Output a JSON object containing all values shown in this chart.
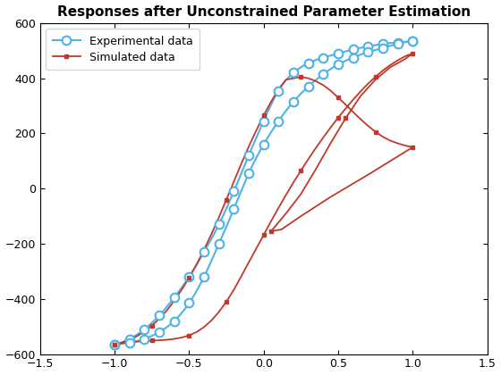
{
  "title": "Responses after Unconstrained Parameter Estimation",
  "xlim": [
    -1.5,
    1.5
  ],
  "ylim": [
    -600,
    600
  ],
  "xticks": [
    -1.5,
    -1.0,
    -0.5,
    0.0,
    0.5,
    1.0,
    1.5
  ],
  "yticks": [
    -600,
    -400,
    -200,
    0,
    200,
    400,
    600
  ],
  "exp_color": "#4db3e6",
  "sim_color": "#c0392b",
  "background": "#ffffff",
  "title_fontsize": 11,
  "legend_fontsize": 9,
  "exp_up_x": [
    -1.0,
    -0.9,
    -0.8,
    -0.7,
    -0.6,
    -0.5,
    -0.4,
    -0.3,
    -0.2,
    -0.1,
    0.0,
    0.1,
    0.2,
    0.3,
    0.4,
    0.5,
    0.6,
    0.7,
    0.8,
    0.9,
    1.0
  ],
  "exp_up_y": [
    -565,
    -545,
    -510,
    -460,
    -395,
    -320,
    -230,
    -130,
    -10,
    120,
    245,
    355,
    420,
    455,
    475,
    490,
    505,
    515,
    525,
    530,
    535
  ],
  "exp_dn_x": [
    1.0,
    0.9,
    0.8,
    0.7,
    0.6,
    0.5,
    0.4,
    0.3,
    0.2,
    0.1,
    0.0,
    -0.1,
    -0.2,
    -0.3,
    -0.4,
    -0.5,
    -0.6,
    -0.7,
    -0.8,
    -0.9,
    -1.0
  ],
  "exp_dn_y": [
    535,
    525,
    510,
    495,
    475,
    450,
    415,
    370,
    315,
    245,
    160,
    55,
    -75,
    -200,
    -320,
    -415,
    -480,
    -520,
    -545,
    -558,
    -565
  ],
  "sim_asc_x": [
    -1.0,
    -0.95,
    -0.9,
    -0.85,
    -0.8,
    -0.75,
    -0.7,
    -0.65,
    -0.6,
    -0.55,
    -0.5,
    -0.45,
    -0.4,
    -0.35,
    -0.3,
    -0.25,
    -0.2,
    -0.15,
    -0.1,
    -0.05,
    0.0,
    0.05,
    0.1,
    0.15,
    0.2,
    0.25,
    0.3,
    0.35,
    0.4,
    0.45,
    0.5,
    0.55,
    0.6,
    0.65,
    0.7,
    0.75,
    0.8,
    0.85,
    0.9,
    0.95,
    1.0
  ],
  "sim_asc_y": [
    -565,
    -558,
    -548,
    -535,
    -518,
    -497,
    -472,
    -442,
    -407,
    -367,
    -323,
    -275,
    -222,
    -165,
    -104,
    -40,
    25,
    90,
    152,
    210,
    265,
    315,
    360,
    395,
    400,
    405,
    400,
    390,
    375,
    355,
    330,
    305,
    278,
    252,
    228,
    206,
    188,
    174,
    164,
    156,
    150
  ],
  "sim_trans_x": [
    1.0,
    0.7,
    0.45,
    0.25,
    0.12,
    0.05
  ],
  "sim_trans_y": [
    150,
    50,
    -30,
    -100,
    -148,
    -155
  ],
  "sim_rejoin_x": [
    0.05,
    0.15,
    0.25,
    0.35,
    0.45,
    0.55,
    0.65,
    0.75,
    0.85,
    0.95,
    1.0
  ],
  "sim_rejoin_y": [
    -155,
    -90,
    -20,
    70,
    165,
    255,
    335,
    395,
    440,
    470,
    490
  ],
  "sim_desc_x": [
    1.0,
    0.95,
    0.9,
    0.85,
    0.8,
    0.75,
    0.7,
    0.65,
    0.6,
    0.55,
    0.5,
    0.45,
    0.4,
    0.35,
    0.3,
    0.25,
    0.2,
    0.15,
    0.1,
    0.05,
    0.0,
    -0.05,
    -0.1,
    -0.15,
    -0.2,
    -0.25,
    -0.3,
    -0.35,
    -0.4,
    -0.45,
    -0.5,
    -0.55,
    -0.6,
    -0.65,
    -0.7,
    -0.75,
    -0.8,
    -0.85,
    -0.9,
    -0.95,
    -1.0
  ],
  "sim_desc_y": [
    490,
    480,
    465,
    448,
    428,
    405,
    380,
    352,
    322,
    290,
    257,
    222,
    185,
    147,
    107,
    65,
    22,
    -23,
    -70,
    -118,
    -168,
    -218,
    -268,
    -318,
    -367,
    -410,
    -447,
    -478,
    -502,
    -520,
    -532,
    -540,
    -545,
    -548,
    -550,
    -551,
    -553,
    -555,
    -558,
    -561,
    -565
  ]
}
